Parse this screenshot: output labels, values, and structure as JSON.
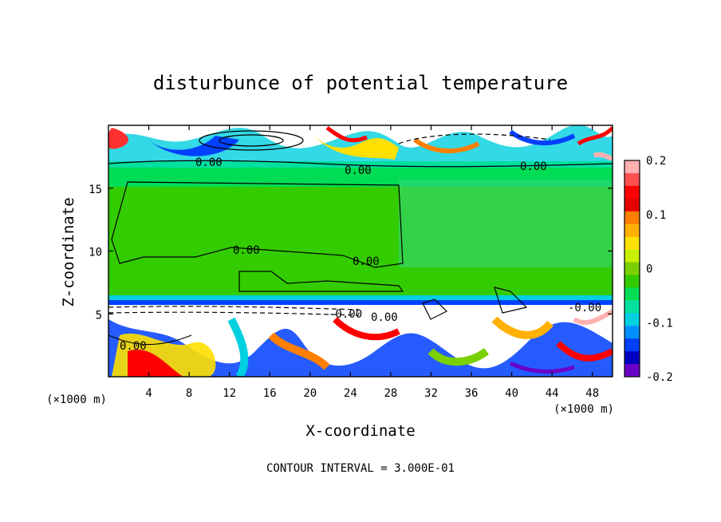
{
  "chart_data": {
    "type": "heatmap",
    "title": "disturbunce of potential temperature",
    "xlabel": "X-coordinate",
    "ylabel": "Z-coordinate",
    "x_unit": "(×1000 m)",
    "x_unit_right": "(×1000 m)",
    "xlim": [
      0,
      50
    ],
    "ylim": [
      0,
      20
    ],
    "x_ticks": [
      "4",
      "8",
      "12",
      "16",
      "20",
      "24",
      "28",
      "32",
      "36",
      "40",
      "44",
      "48"
    ],
    "y_ticks": [
      "5",
      "10",
      "15"
    ],
    "colorbar_ticks": [
      "0.2",
      "0.1",
      "0",
      "-0.1",
      "-0.2"
    ],
    "colorbar_range": [
      -0.2,
      0.2
    ],
    "colorbar_colors": [
      "#ffb0b0",
      "#ff5050",
      "#ff0000",
      "#e60000",
      "#ff7f00",
      "#ffb000",
      "#ffe000",
      "#c8f000",
      "#7ad000",
      "#33cc00",
      "#00dd55",
      "#00e0a0",
      "#00d0e0",
      "#0090ff",
      "#0040ff",
      "#0000c0",
      "#6a00c8"
    ],
    "contour_labels": [
      "0.00",
      "0.00",
      "0.00",
      "0.00",
      "0.00",
      "0.00",
      "-0.00",
      "0.00",
      "-0.00"
    ],
    "footer": "CONTOUR INTERVAL = 3.000E-01"
  }
}
